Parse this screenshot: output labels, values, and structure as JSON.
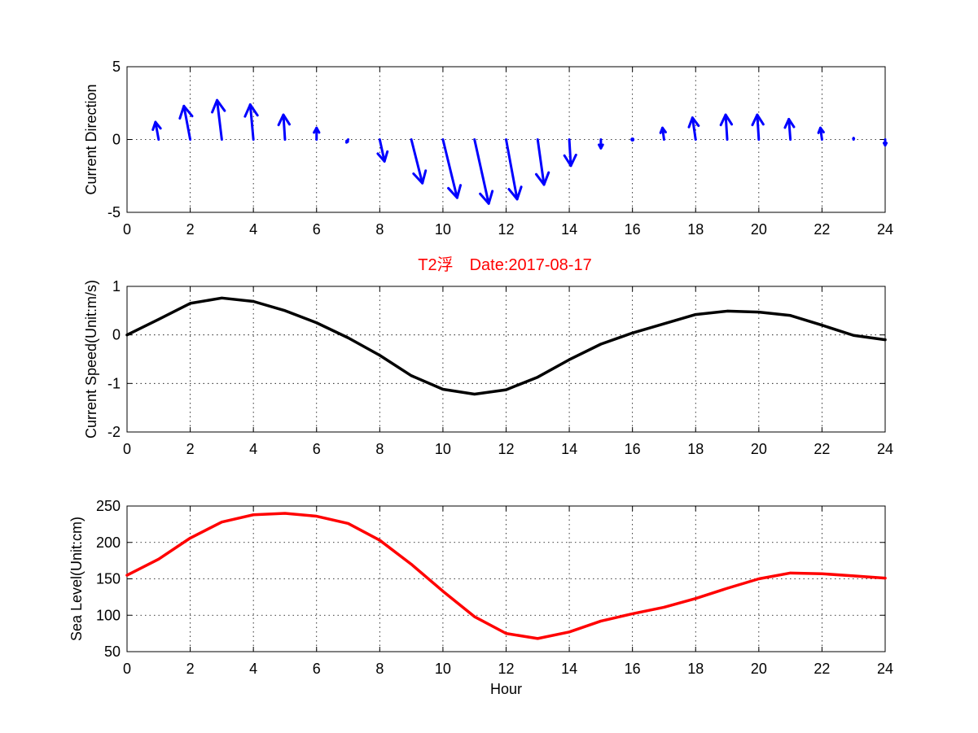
{
  "title": "T2浮　Date:2017-08-17",
  "colors": {
    "direction": "#0000ff",
    "speed": "#000000",
    "level": "#ff0000",
    "title": "#ff0000"
  },
  "chart_data": [
    {
      "type": "quiver",
      "ylabel": "Current Direction",
      "xlabel": "",
      "xlim": [
        0,
        24
      ],
      "ylim": [
        -5,
        5
      ],
      "xticks": [
        0,
        2,
        4,
        6,
        8,
        10,
        12,
        14,
        16,
        18,
        20,
        22,
        24
      ],
      "yticks": [
        -5,
        0,
        5
      ],
      "x": [
        1,
        2,
        3,
        4,
        5,
        6,
        7,
        8,
        9,
        10,
        11,
        12,
        13,
        14,
        15,
        16,
        17,
        18,
        19,
        20,
        21,
        22,
        23,
        24
      ],
      "u": [
        -0.1,
        -0.2,
        -0.15,
        -0.1,
        -0.05,
        0,
        -0.05,
        0.15,
        0.35,
        0.45,
        0.45,
        0.35,
        0.2,
        0.05,
        0,
        0,
        -0.05,
        -0.1,
        -0.05,
        -0.05,
        -0.05,
        -0.05,
        0,
        0
      ],
      "v": [
        1.2,
        2.3,
        2.7,
        2.4,
        1.7,
        0.8,
        -0.2,
        -1.5,
        -3.0,
        -4.0,
        -4.4,
        -4.1,
        -3.1,
        -1.8,
        -0.6,
        -0.05,
        0.8,
        1.5,
        1.7,
        1.7,
        1.4,
        0.8,
        0.1,
        -0.4
      ]
    },
    {
      "type": "line",
      "ylabel": "Current Speed(Unit:m/s)",
      "xlabel": "",
      "xlim": [
        0,
        24
      ],
      "ylim": [
        -2,
        1
      ],
      "xticks": [
        0,
        2,
        4,
        6,
        8,
        10,
        12,
        14,
        16,
        18,
        20,
        22,
        24
      ],
      "yticks": [
        -2,
        -1,
        0,
        1
      ],
      "x": [
        0,
        1,
        2,
        3,
        4,
        5,
        6,
        7,
        8,
        9,
        10,
        11,
        12,
        13,
        14,
        15,
        16,
        17,
        18,
        19,
        20,
        21,
        22,
        23,
        24
      ],
      "y": [
        0.0,
        0.32,
        0.65,
        0.76,
        0.69,
        0.5,
        0.25,
        -0.06,
        -0.42,
        -0.84,
        -1.12,
        -1.22,
        -1.13,
        -0.87,
        -0.51,
        -0.19,
        0.04,
        0.23,
        0.42,
        0.49,
        0.47,
        0.4,
        0.2,
        -0.01,
        -0.1
      ],
      "series_name": "Current Speed"
    },
    {
      "type": "line",
      "ylabel": "Sea Level(Unit:cm)",
      "xlabel": "Hour",
      "xlim": [
        0,
        24
      ],
      "ylim": [
        50,
        250
      ],
      "xticks": [
        0,
        2,
        4,
        6,
        8,
        10,
        12,
        14,
        16,
        18,
        20,
        22,
        24
      ],
      "yticks": [
        50,
        100,
        150,
        200,
        250
      ],
      "x": [
        0,
        1,
        2,
        3,
        4,
        5,
        6,
        7,
        8,
        9,
        10,
        11,
        12,
        13,
        14,
        15,
        16,
        17,
        18,
        19,
        20,
        21,
        22,
        23,
        24
      ],
      "y": [
        155,
        177,
        206,
        228,
        238,
        240,
        236,
        226,
        203,
        170,
        133,
        98,
        75,
        68,
        77,
        92,
        102,
        111,
        123,
        137,
        150,
        158,
        157,
        154,
        151
      ],
      "series_name": "Sea Level"
    }
  ]
}
